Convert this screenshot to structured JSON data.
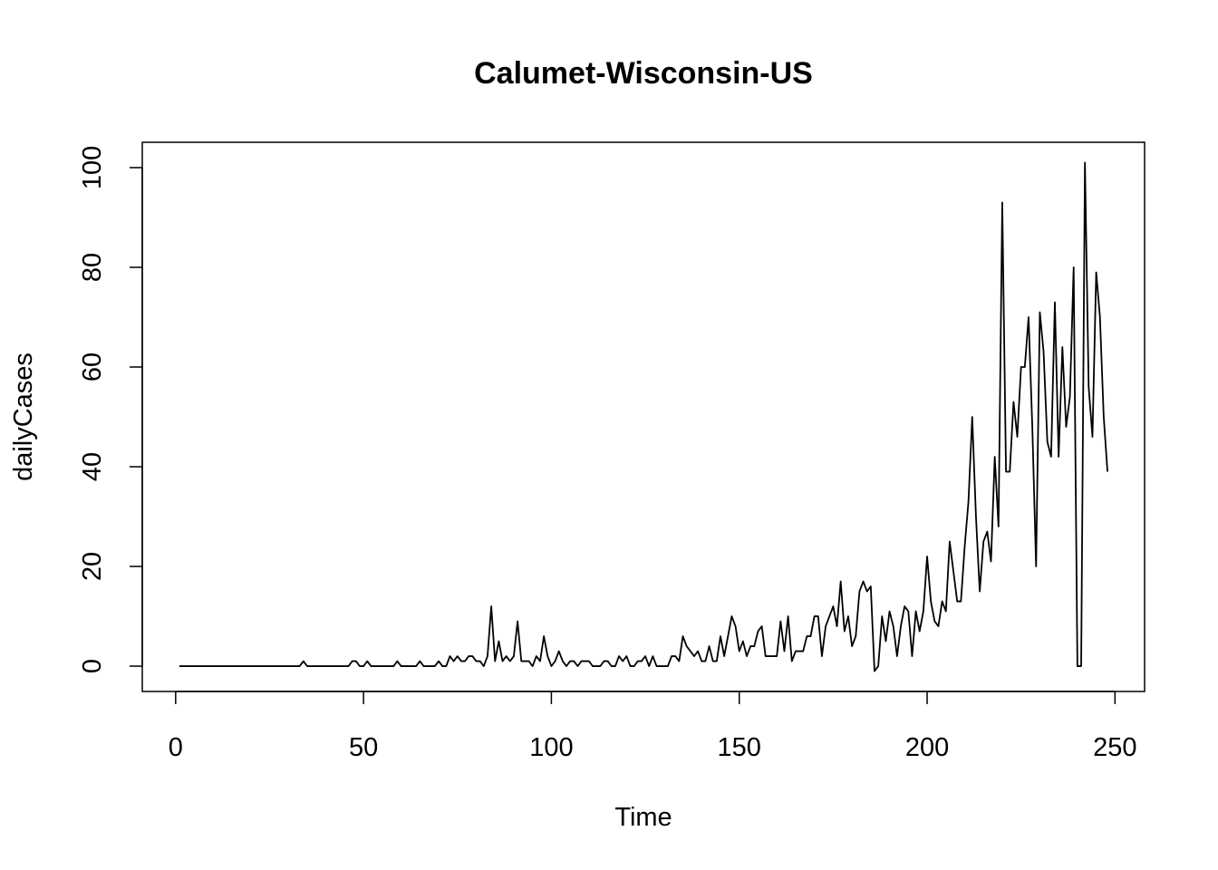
{
  "chart_data": {
    "type": "line",
    "title": "Calumet-Wisconsin-US",
    "xlabel": "Time",
    "ylabel": "dailyCases",
    "x": [
      1,
      2,
      3,
      4,
      5,
      6,
      7,
      8,
      9,
      10,
      11,
      12,
      13,
      14,
      15,
      16,
      17,
      18,
      19,
      20,
      21,
      22,
      23,
      24,
      25,
      26,
      27,
      28,
      29,
      30,
      31,
      32,
      33,
      34,
      35,
      36,
      37,
      38,
      39,
      40,
      41,
      42,
      43,
      44,
      45,
      46,
      47,
      48,
      49,
      50,
      51,
      52,
      53,
      54,
      55,
      56,
      57,
      58,
      59,
      60,
      61,
      62,
      63,
      64,
      65,
      66,
      67,
      68,
      69,
      70,
      71,
      72,
      73,
      74,
      75,
      76,
      77,
      78,
      79,
      80,
      81,
      82,
      83,
      84,
      85,
      86,
      87,
      88,
      89,
      90,
      91,
      92,
      93,
      94,
      95,
      96,
      97,
      98,
      99,
      100,
      101,
      102,
      103,
      104,
      105,
      106,
      107,
      108,
      109,
      110,
      111,
      112,
      113,
      114,
      115,
      116,
      117,
      118,
      119,
      120,
      121,
      122,
      123,
      124,
      125,
      126,
      127,
      128,
      129,
      130,
      131,
      132,
      133,
      134,
      135,
      136,
      137,
      138,
      139,
      140,
      141,
      142,
      143,
      144,
      145,
      146,
      147,
      148,
      149,
      150,
      151,
      152,
      153,
      154,
      155,
      156,
      157,
      158,
      159,
      160,
      161,
      162,
      163,
      164,
      165,
      166,
      167,
      168,
      169,
      170,
      171,
      172,
      173,
      174,
      175,
      176,
      177,
      178,
      179,
      180,
      181,
      182,
      183,
      184,
      185,
      186,
      187,
      188,
      189,
      190,
      191,
      192,
      193,
      194,
      195,
      196,
      197,
      198,
      199,
      200,
      201,
      202,
      203,
      204,
      205,
      206,
      207,
      208,
      209,
      210,
      211,
      212,
      213,
      214,
      215,
      216,
      217,
      218,
      219,
      220,
      221,
      222,
      223,
      224,
      225,
      226,
      227,
      228,
      229,
      230,
      231,
      232,
      233,
      234,
      235,
      236,
      237,
      238,
      239,
      240,
      241,
      242,
      243,
      244,
      245,
      246,
      247,
      248
    ],
    "series": [
      {
        "name": "dailyCases",
        "color": "#000000",
        "values": [
          0,
          0,
          0,
          0,
          0,
          0,
          0,
          0,
          0,
          0,
          0,
          0,
          0,
          0,
          0,
          0,
          0,
          0,
          0,
          0,
          0,
          0,
          0,
          0,
          0,
          0,
          0,
          0,
          0,
          0,
          0,
          0,
          0,
          1,
          0,
          0,
          0,
          0,
          0,
          0,
          0,
          0,
          0,
          0,
          0,
          0,
          1,
          1,
          0,
          0,
          1,
          0,
          0,
          0,
          0,
          0,
          0,
          0,
          1,
          0,
          0,
          0,
          0,
          0,
          1,
          0,
          0,
          0,
          0,
          1,
          0,
          0,
          2,
          1,
          2,
          1,
          1,
          2,
          2,
          1,
          1,
          0,
          2,
          12,
          1,
          5,
          1,
          2,
          1,
          2,
          9,
          1,
          1,
          1,
          0,
          2,
          1,
          6,
          2,
          0,
          1,
          3,
          1,
          0,
          1,
          1,
          0,
          1,
          1,
          1,
          0,
          0,
          0,
          1,
          1,
          0,
          0,
          2,
          1,
          2,
          0,
          0,
          1,
          1,
          2,
          0,
          2,
          0,
          0,
          0,
          0,
          2,
          2,
          1,
          6,
          4,
          3,
          2,
          3,
          1,
          1,
          4,
          1,
          1,
          6,
          2,
          6,
          10,
          8,
          3,
          5,
          2,
          4,
          4,
          7,
          8,
          2,
          2,
          2,
          2,
          9,
          3,
          10,
          1,
          3,
          3,
          3,
          6,
          6,
          10,
          10,
          2,
          8,
          10,
          12,
          8,
          17,
          7,
          10,
          4,
          6,
          15,
          17,
          15,
          16,
          -1,
          0,
          10,
          5,
          11,
          8,
          2,
          8,
          12,
          11,
          2,
          11,
          7,
          11,
          22,
          13,
          9,
          8,
          13,
          11,
          25,
          19,
          13,
          13,
          24,
          33,
          50,
          30,
          15,
          25,
          27,
          21,
          42,
          28,
          93,
          39,
          39,
          53,
          46,
          60,
          60,
          70,
          48,
          20,
          71,
          63,
          45,
          42,
          73,
          42,
          64,
          48,
          54,
          80,
          0,
          0,
          101,
          56,
          46,
          79,
          70,
          50,
          39
        ]
      }
    ],
    "xlim": [
      -8.88,
      257.88
    ],
    "xticks": [
      0,
      50,
      100,
      150,
      200,
      250
    ],
    "ylim": [
      -5.08,
      105.08
    ],
    "yticks": [
      0,
      20,
      40,
      60,
      80,
      100
    ]
  }
}
